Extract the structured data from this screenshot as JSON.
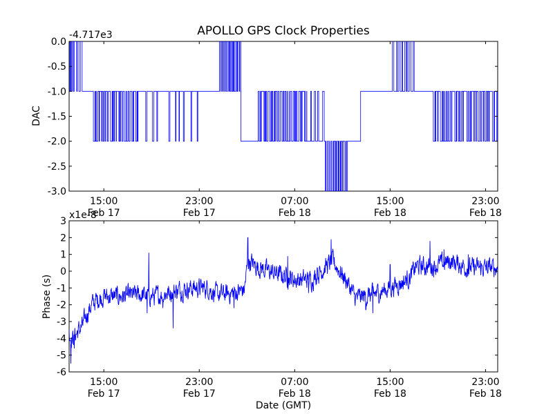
{
  "title": "APOLLO GPS Clock Properties",
  "chart_data": [
    {
      "type": "line",
      "ylabel": "DAC",
      "xlabel": "",
      "offset_label": "-4.717e3",
      "ylim": [
        -3.0,
        0.0
      ],
      "xlim_hours": [
        11,
        35.7
      ],
      "yticks": [
        {
          "value": 0.0,
          "label": "0.0"
        },
        {
          "value": -0.5,
          "label": "-0.5"
        },
        {
          "value": -1.0,
          "label": "-1.0"
        },
        {
          "value": -1.5,
          "label": "-1.5"
        },
        {
          "value": -2.0,
          "label": "-2.0"
        },
        {
          "value": -2.5,
          "label": "-2.5"
        },
        {
          "value": -3.0,
          "label": "-3.0"
        }
      ],
      "xticks": [
        {
          "hour": 13,
          "time": "15:00",
          "date": "Feb 17"
        },
        {
          "hour": 18.5,
          "time": "23:00",
          "date": "Feb 17"
        },
        {
          "hour": 24,
          "time": "07:00",
          "date": "Feb 18"
        },
        {
          "hour": 29.5,
          "time": "15:00",
          "date": "Feb 18"
        },
        {
          "hour": 35,
          "time": "23:00",
          "date": "Feb 18"
        }
      ],
      "segments": [
        {
          "start": 11.0,
          "end": 11.25,
          "base": -1.0,
          "alt": [
            0.0
          ],
          "flicker": 4
        },
        {
          "start": 11.25,
          "end": 11.75,
          "base": 0.0,
          "alt": [
            -1.0
          ],
          "flicker": 2
        },
        {
          "start": 11.75,
          "end": 12.3,
          "base": -1.0,
          "alt": [
            -2.0
          ],
          "flicker": 0
        },
        {
          "start": 12.3,
          "end": 15.0,
          "base": -1.0,
          "alt": [
            -2.0
          ],
          "flicker": 22
        },
        {
          "start": 15.0,
          "end": 16.5,
          "base": -1.0,
          "alt": [
            -2.0
          ],
          "flicker": 3
        },
        {
          "start": 16.5,
          "end": 18.5,
          "base": -1.0,
          "alt": [
            -2.0
          ],
          "flicker": 6
        },
        {
          "start": 18.5,
          "end": 19.6,
          "base": -1.0,
          "alt": [
            0.0
          ],
          "flicker": 0
        },
        {
          "start": 19.6,
          "end": 20.9,
          "base": -1.0,
          "alt": [
            0.0
          ],
          "flicker": 14
        },
        {
          "start": 20.9,
          "end": 21.9,
          "base": -2.0,
          "alt": [
            -1.0
          ],
          "flicker": 0
        },
        {
          "start": 21.9,
          "end": 24.7,
          "base": -1.0,
          "alt": [
            -2.0
          ],
          "flicker": 24
        },
        {
          "start": 24.7,
          "end": 25.7,
          "base": -2.0,
          "alt": [
            -1.0
          ],
          "flicker": 4
        },
        {
          "start": 25.7,
          "end": 27.0,
          "base": -2.0,
          "alt": [
            -3.0
          ],
          "flicker": 14
        },
        {
          "start": 27.0,
          "end": 27.8,
          "base": -2.0,
          "alt": [
            -1.0
          ],
          "flicker": 0
        },
        {
          "start": 27.8,
          "end": 29.6,
          "base": -1.0,
          "alt": [],
          "flicker": 0
        },
        {
          "start": 29.6,
          "end": 30.9,
          "base": -1.0,
          "alt": [
            0.0
          ],
          "flicker": 8
        },
        {
          "start": 30.9,
          "end": 31.9,
          "base": -1.0,
          "alt": [],
          "flicker": 0
        },
        {
          "start": 31.9,
          "end": 35.7,
          "base": -1.0,
          "alt": [
            -2.0
          ],
          "flicker": 28
        }
      ]
    },
    {
      "type": "line",
      "ylabel": "Phase (s)",
      "xlabel": "Date (GMT)",
      "offset_label": "x1e-8",
      "ylim": [
        -6,
        3
      ],
      "xlim_hours": [
        11,
        35.7
      ],
      "yticks": [
        {
          "value": 3,
          "label": "3"
        },
        {
          "value": 2,
          "label": "2"
        },
        {
          "value": 1,
          "label": "1"
        },
        {
          "value": 0,
          "label": "0"
        },
        {
          "value": -1,
          "label": "-1"
        },
        {
          "value": -2,
          "label": "-2"
        },
        {
          "value": -3,
          "label": "-3"
        },
        {
          "value": -4,
          "label": "-4"
        },
        {
          "value": -5,
          "label": "-5"
        },
        {
          "value": -6,
          "label": "-6"
        }
      ],
      "xticks": [
        {
          "hour": 13,
          "time": "15:00",
          "date": "Feb 17"
        },
        {
          "hour": 18.5,
          "time": "23:00",
          "date": "Feb 17"
        },
        {
          "hour": 24,
          "time": "07:00",
          "date": "Feb 18"
        },
        {
          "hour": 29.5,
          "time": "15:00",
          "date": "Feb 18"
        },
        {
          "hour": 35,
          "time": "23:00",
          "date": "Feb 18"
        }
      ],
      "trend": [
        [
          11.0,
          -3.7
        ],
        [
          11.2,
          -4.0
        ],
        [
          11.5,
          -3.6
        ],
        [
          11.8,
          -3.2
        ],
        [
          12.0,
          -2.6
        ],
        [
          12.3,
          -2.0
        ],
        [
          12.6,
          -1.7
        ],
        [
          13.0,
          -1.5
        ],
        [
          14.0,
          -1.5
        ],
        [
          15.0,
          -1.4
        ],
        [
          16.0,
          -1.5
        ],
        [
          17.0,
          -1.2
        ],
        [
          18.0,
          -1.0
        ],
        [
          19.0,
          -1.0
        ],
        [
          19.5,
          -1.4
        ],
        [
          20.5,
          -1.3
        ],
        [
          21.1,
          -1.1
        ],
        [
          21.3,
          0.6
        ],
        [
          22.0,
          0.2
        ],
        [
          22.8,
          -0.1
        ],
        [
          23.5,
          -0.3
        ],
        [
          24.0,
          -0.5
        ],
        [
          25.0,
          -0.5
        ],
        [
          25.8,
          0.3
        ],
        [
          26.2,
          0.6
        ],
        [
          26.8,
          -0.3
        ],
        [
          27.0,
          -0.6
        ],
        [
          27.5,
          -1.6
        ],
        [
          28.5,
          -1.4
        ],
        [
          29.5,
          -1.0
        ],
        [
          30.3,
          -0.6
        ],
        [
          30.7,
          -0.3
        ],
        [
          31.0,
          0.3
        ],
        [
          32.0,
          0.3
        ],
        [
          33.0,
          0.6
        ],
        [
          34.0,
          0.2
        ],
        [
          35.7,
          0.2
        ]
      ],
      "noise": 0.45,
      "spikes": [
        [
          11.1,
          -5.5
        ],
        [
          11.3,
          -4.6
        ],
        [
          15.6,
          1.1
        ],
        [
          15.5,
          -2.5
        ],
        [
          16.4,
          -2.2
        ],
        [
          17.0,
          -3.4
        ],
        [
          20.5,
          -2.2
        ],
        [
          21.3,
          2.0
        ],
        [
          23.6,
          0.9
        ],
        [
          24.8,
          -1.3
        ],
        [
          25.3,
          0.2
        ],
        [
          26.1,
          1.9
        ],
        [
          28.5,
          -2.5
        ],
        [
          28.1,
          -2.3
        ],
        [
          29.5,
          0.4
        ],
        [
          31.8,
          1.8
        ],
        [
          32.6,
          1.3
        ],
        [
          34.0,
          1.0
        ]
      ]
    }
  ]
}
